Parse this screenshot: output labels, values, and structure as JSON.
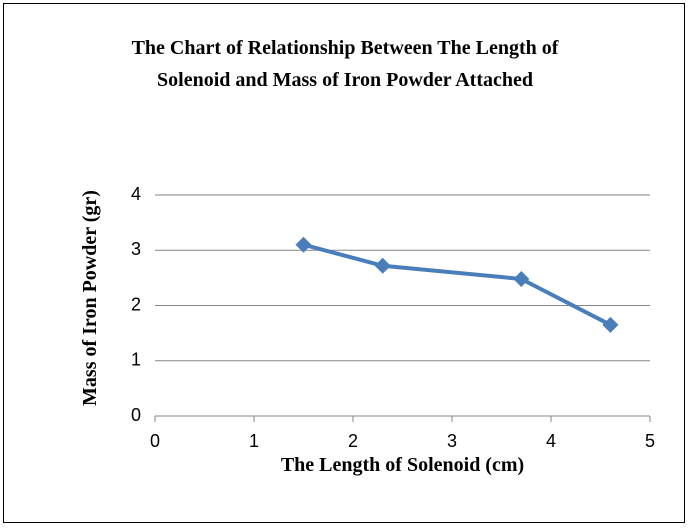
{
  "chart_data": {
    "type": "line",
    "title": "The Chart of Relationship Between The Length of Solenoid and Mass of Iron Powder Attached",
    "x_label": "The Length of Solenoid (cm)",
    "y_label": "Mass of Iron Powder (gr)",
    "x": [
      1.5,
      2.3,
      3.7,
      4.6
    ],
    "series": [
      {
        "name": "Mass of Iron Powder",
        "color": "#4a7ebb",
        "values": [
          3.1,
          2.72,
          2.48,
          1.65
        ]
      }
    ],
    "xlim": [
      0,
      5
    ],
    "xticks": [
      0,
      1,
      2,
      3,
      4,
      5
    ],
    "ylim": [
      0,
      4
    ],
    "yticks": [
      0,
      1,
      2,
      3,
      4
    ],
    "grid": true,
    "marker": "diamond"
  }
}
